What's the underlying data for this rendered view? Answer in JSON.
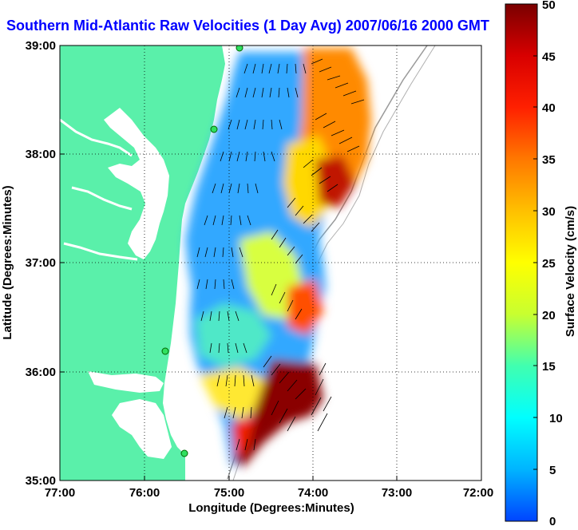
{
  "title": "Southern Mid-Atlantic Raw Velocities (1 Day Avg) 2007/06/16 2000 GMT",
  "x_axis": {
    "label": "Longitude (Degrees:Minutes)",
    "ticks": [
      "77:00",
      "76:00",
      "75:00",
      "74:00",
      "73:00",
      "72:00"
    ]
  },
  "y_axis": {
    "label": "Latitude (Degrees:Minutes)",
    "ticks": [
      "39:00",
      "38:00",
      "37:00",
      "36:00",
      "35:00"
    ]
  },
  "colorbar": {
    "label": "Surface Velocity (cm/s)",
    "ticks": [
      "50",
      "45",
      "40",
      "35",
      "30",
      "25",
      "20",
      "15",
      "10",
      "5",
      "0"
    ],
    "min": 0,
    "max": 50,
    "colors": [
      "#0044ff",
      "#00b4ff",
      "#00ffff",
      "#40ffb0",
      "#c8ff30",
      "#ffff00",
      "#ffc000",
      "#ff7800",
      "#ff2000",
      "#d80000",
      "#7a0000"
    ]
  },
  "map": {
    "land_color": "#5af0aa",
    "ocean_color": "#ffffff",
    "grid": true,
    "lon_range": [
      "77:00",
      "72:00"
    ],
    "lat_range": [
      "35:00",
      "39:00"
    ]
  }
}
